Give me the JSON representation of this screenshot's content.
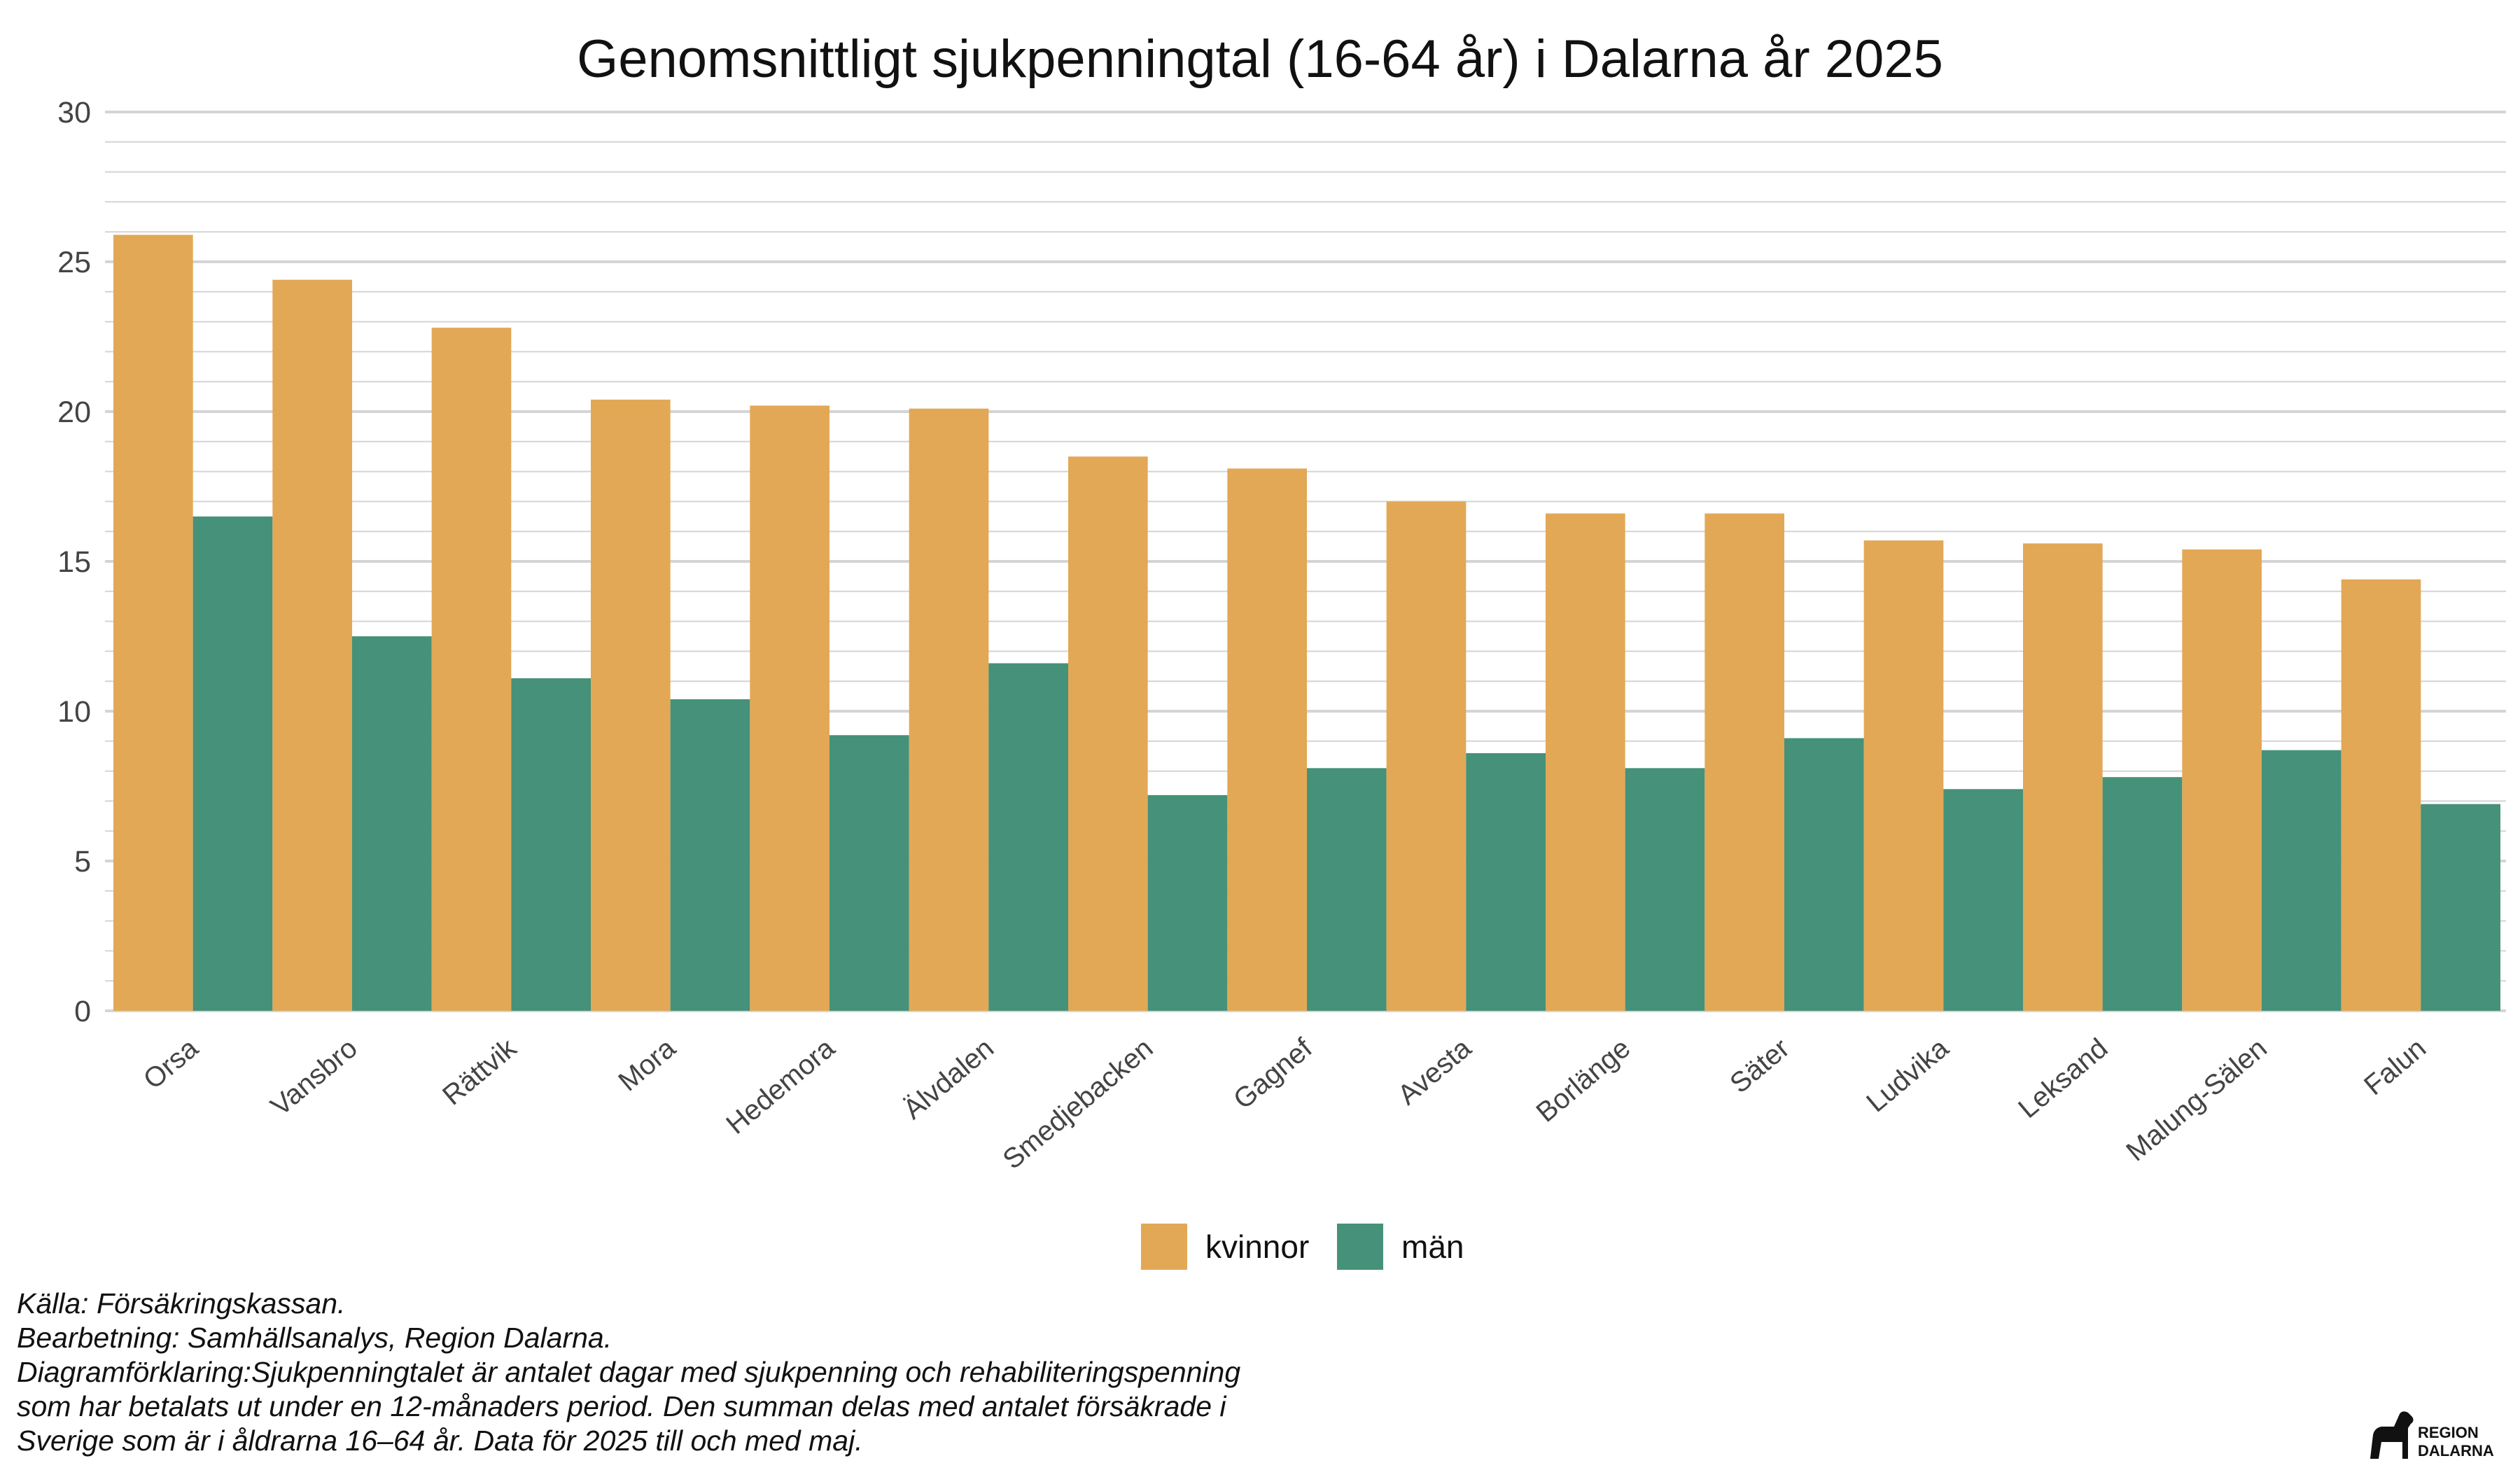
{
  "chart_data": {
    "type": "bar",
    "title": "Genomsnittligt sjukpenningtal (16-64 år) i Dalarna år 2025",
    "xlabel": "",
    "ylabel": "",
    "ylim": [
      0,
      30
    ],
    "yticks": [
      "0",
      "5",
      "10",
      "15",
      "20",
      "25",
      "30"
    ],
    "grid": true,
    "legend_position": "bottom",
    "categories": [
      "Orsa",
      "Vansbro",
      "Rättvik",
      "Mora",
      "Hedemora",
      "Älvdalen",
      "Smedjebacken",
      "Gagnef",
      "Avesta",
      "Borlänge",
      "Säter",
      "Ludvika",
      "Leksand",
      "Malung-Sälen",
      "Falun"
    ],
    "series": [
      {
        "name": "kvinnor",
        "color": "#E2A856",
        "values": [
          25.9,
          24.4,
          22.8,
          20.4,
          20.2,
          20.1,
          18.5,
          18.1,
          17.0,
          16.6,
          16.6,
          15.7,
          15.6,
          15.4,
          14.4
        ]
      },
      {
        "name": "män",
        "color": "#45917A",
        "values": [
          16.5,
          12.5,
          11.1,
          10.4,
          9.2,
          11.6,
          7.2,
          8.1,
          8.6,
          8.1,
          9.1,
          7.4,
          7.8,
          8.7,
          6.9
        ]
      }
    ]
  },
  "caption": {
    "line1": "Källa: Försäkringskassan.",
    "line2": "Bearbetning: Samhällsanalys, Region Dalarna.",
    "line3": "Diagramförklaring:Sjukpenningtalet är antalet dagar med sjukpenning och rehabiliteringspenning",
    "line4": "som har betalats ut under en 12-månaders period. Den summan delas med antalet försäkrade i",
    "line5": "Sverige som är i åldrarna 16–64 år. Data för 2025 till och med maj."
  },
  "logo": {
    "line1": "REGION",
    "line2": "DALARNA",
    "icon": "dala-horse-icon"
  }
}
